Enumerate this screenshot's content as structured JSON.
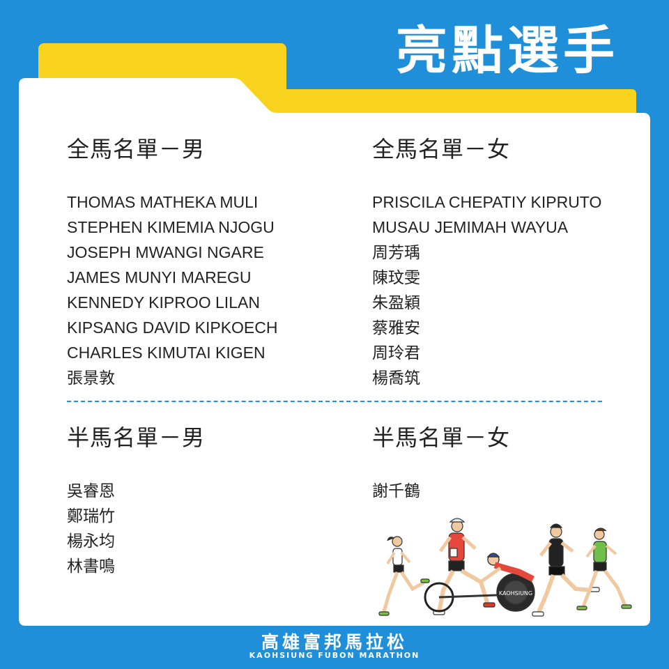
{
  "title": "亮點選手",
  "sections": {
    "full_male": {
      "heading": "全馬名單－男",
      "names": [
        "THOMAS MATHEKA MULI",
        "STEPHEN KIMEMIA NJOGU",
        "JOSEPH MWANGI NGARE",
        "JAMES MUNYI MAREGU",
        "KENNEDY KIPROO LILAN",
        "KIPSANG DAVID KIPKOECH",
        "CHARLES KIMUTAI KIGEN",
        "張景敦"
      ]
    },
    "full_female": {
      "heading": "全馬名單－女",
      "names": [
        "PRISCILA CHEPATIY KIPRUTO",
        "MUSAU JEMIMAH WAYUA",
        "周芳瑀",
        "陳玟雯",
        "朱盈穎",
        "蔡雅安",
        "周玲君",
        "楊喬筑"
      ]
    },
    "half_male": {
      "heading": "半馬名單－男",
      "names": [
        "吳睿恩",
        "鄭瑞竹",
        "楊永均",
        "林書鳴"
      ]
    },
    "half_female": {
      "heading": "半馬名單－女",
      "names": [
        "謝千鶴"
      ]
    }
  },
  "footer": {
    "name_cn": "高雄富邦馬拉松",
    "name_en": "KAOHSIUNG FUBON MARATHON"
  },
  "wheel_text": "KAOHSIUNG",
  "colors": {
    "background": "#1f8fda",
    "accent_yellow": "#f7d31e",
    "card": "#ffffff",
    "text": "#222222"
  }
}
